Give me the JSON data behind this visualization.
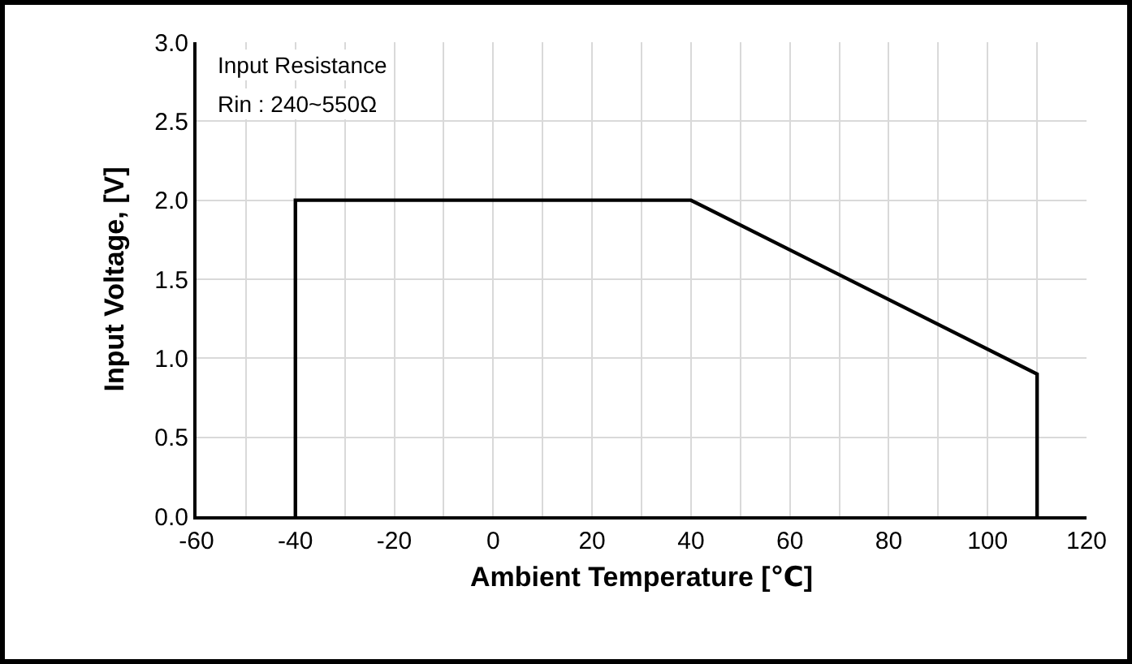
{
  "chart_data": {
    "type": "line",
    "xlabel": "Ambient Temperature [℃]",
    "ylabel": "Input Voltage, [V]",
    "x": [
      -40,
      -40,
      40,
      110,
      110
    ],
    "series": [
      {
        "color": "#000000",
        "values": [
          0,
          2,
          2,
          0.9,
          0
        ]
      }
    ],
    "xlim": [
      -60,
      120
    ],
    "ylim": [
      0,
      3
    ],
    "xticks": [
      -60,
      {
        "value": -50,
        "label": null
      },
      -40,
      {
        "value": -30,
        "label": null
      },
      -20,
      {
        "value": -10,
        "label": null
      },
      0,
      {
        "value": 10,
        "label": null
      },
      20,
      {
        "value": 30,
        "label": null
      },
      40,
      {
        "value": 50,
        "label": null
      },
      60,
      {
        "value": 70,
        "label": null
      },
      80,
      {
        "value": 90,
        "label": null
      },
      100,
      {
        "value": 110,
        "label": null
      },
      120
    ],
    "yticks": [
      {
        "value": 0,
        "label": "0.0"
      },
      {
        "value": 0.5,
        "label": "0.5"
      },
      {
        "value": 1,
        "label": "1.0"
      },
      {
        "value": 1.5,
        "label": "1.5"
      },
      {
        "value": 2,
        "label": "2.0"
      },
      {
        "value": 2.5,
        "label": "2.5"
      },
      {
        "value": 3,
        "label": "3.0"
      }
    ],
    "grid": true,
    "line_style": "solid",
    "annotations": [
      "Input Resistance",
      "Rin : 240~550Ω"
    ]
  }
}
